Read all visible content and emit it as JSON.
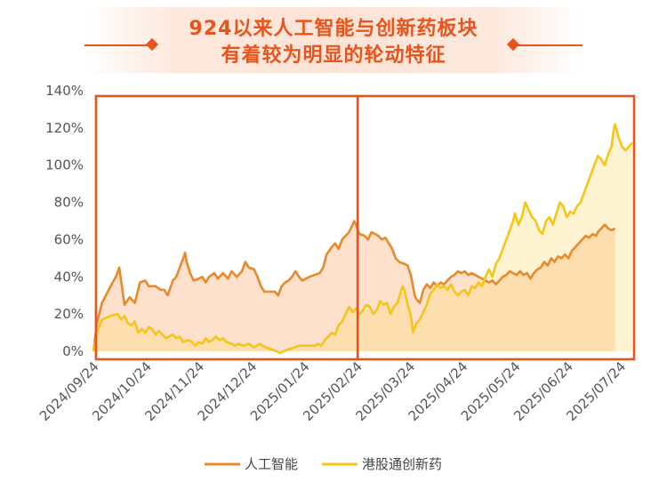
{
  "title": {
    "line1": "924以来人工智能与创新药板块",
    "line2": "有着较为明显的轮动特征"
  },
  "chart_data": {
    "type": "area",
    "y_ticks": [
      "0%",
      "20%",
      "40%",
      "60%",
      "80%",
      "100%",
      "120%",
      "140%"
    ],
    "ylim": [
      0,
      140
    ],
    "x_ticks": [
      "2024/09/24",
      "2024/10/24",
      "2024/11/24",
      "2024/12/24",
      "2025/01/24",
      "2025/02/24",
      "2025/03/24",
      "2025/04/24",
      "2025/05/24",
      "2025/06/24",
      "2025/07/24"
    ],
    "xlim": [
      0,
      313
    ],
    "series": [
      {
        "name": "人工智能",
        "color": "#e8892c",
        "points": [
          [
            0,
            0
          ],
          [
            2,
            15
          ],
          [
            5,
            26
          ],
          [
            10,
            35
          ],
          [
            13,
            40
          ],
          [
            15,
            45
          ],
          [
            18,
            25
          ],
          [
            21,
            29
          ],
          [
            24,
            26
          ],
          [
            27,
            37
          ],
          [
            30,
            38
          ],
          [
            32,
            35
          ],
          [
            36,
            35
          ],
          [
            39,
            33
          ],
          [
            41,
            33
          ],
          [
            43,
            30
          ],
          [
            46,
            38
          ],
          [
            48,
            40
          ],
          [
            50,
            45
          ],
          [
            52,
            50
          ],
          [
            53,
            53
          ],
          [
            54,
            48
          ],
          [
            56,
            42
          ],
          [
            58,
            38
          ],
          [
            61,
            39
          ],
          [
            63,
            40
          ],
          [
            65,
            37
          ],
          [
            67,
            40
          ],
          [
            70,
            42
          ],
          [
            72,
            39
          ],
          [
            75,
            42
          ],
          [
            78,
            39
          ],
          [
            80,
            43
          ],
          [
            83,
            40
          ],
          [
            86,
            43
          ],
          [
            88,
            48
          ],
          [
            90,
            45
          ],
          [
            93,
            44
          ],
          [
            95,
            40
          ],
          [
            97,
            35
          ],
          [
            99,
            32
          ],
          [
            102,
            32
          ],
          [
            105,
            32
          ],
          [
            107,
            30
          ],
          [
            109,
            35
          ],
          [
            111,
            37
          ],
          [
            113,
            38
          ],
          [
            115,
            40
          ],
          [
            117,
            43
          ],
          [
            119,
            40
          ],
          [
            121,
            38
          ],
          [
            123,
            39
          ],
          [
            125,
            40
          ],
          [
            128,
            41
          ],
          [
            131,
            42
          ],
          [
            133,
            45
          ],
          [
            135,
            52
          ],
          [
            138,
            56
          ],
          [
            140,
            58
          ],
          [
            142,
            55
          ],
          [
            144,
            60
          ],
          [
            146,
            62
          ],
          [
            148,
            64
          ],
          [
            150,
            68
          ],
          [
            151,
            70
          ],
          [
            152,
            68
          ],
          [
            154,
            63
          ],
          [
            157,
            62
          ],
          [
            159,
            60
          ],
          [
            161,
            64
          ],
          [
            163,
            63
          ],
          [
            165,
            62
          ],
          [
            167,
            60
          ],
          [
            169,
            61
          ],
          [
            171,
            58
          ],
          [
            173,
            55
          ],
          [
            175,
            50
          ],
          [
            177,
            48
          ],
          [
            180,
            47
          ],
          [
            182,
            46
          ],
          [
            184,
            40
          ],
          [
            185,
            35
          ],
          [
            186,
            30
          ],
          [
            187,
            28
          ],
          [
            189,
            26
          ],
          [
            191,
            33
          ],
          [
            193,
            36
          ],
          [
            195,
            34
          ],
          [
            197,
            37
          ],
          [
            199,
            35
          ],
          [
            201,
            37
          ],
          [
            203,
            36
          ],
          [
            205,
            38
          ],
          [
            207,
            40
          ],
          [
            209,
            41
          ],
          [
            211,
            43
          ],
          [
            213,
            42
          ],
          [
            215,
            43
          ],
          [
            217,
            41
          ],
          [
            219,
            42
          ],
          [
            221,
            41
          ],
          [
            223,
            40
          ],
          [
            225,
            39
          ],
          [
            227,
            38
          ],
          [
            229,
            37
          ],
          [
            231,
            38
          ],
          [
            233,
            36
          ],
          [
            235,
            38
          ],
          [
            237,
            40
          ],
          [
            239,
            41
          ],
          [
            241,
            43
          ],
          [
            243,
            42
          ],
          [
            245,
            41
          ],
          [
            247,
            43
          ],
          [
            249,
            41
          ],
          [
            251,
            42
          ],
          [
            253,
            39
          ],
          [
            255,
            42
          ],
          [
            257,
            44
          ],
          [
            259,
            45
          ],
          [
            261,
            48
          ],
          [
            263,
            46
          ],
          [
            265,
            50
          ],
          [
            267,
            48
          ],
          [
            269,
            51
          ],
          [
            271,
            50
          ],
          [
            273,
            52
          ],
          [
            275,
            50
          ],
          [
            277,
            54
          ],
          [
            279,
            56
          ],
          [
            281,
            58
          ],
          [
            283,
            60
          ],
          [
            285,
            62
          ],
          [
            287,
            61
          ],
          [
            289,
            63
          ],
          [
            291,
            62
          ],
          [
            292,
            64
          ],
          [
            294,
            66
          ],
          [
            296,
            68
          ],
          [
            298,
            66
          ],
          [
            300,
            65
          ],
          [
            302,
            66
          ]
        ]
      },
      {
        "name": "港股通创新药",
        "color": "#f5c518",
        "points": [
          [
            0,
            0
          ],
          [
            2,
            10
          ],
          [
            5,
            17
          ],
          [
            10,
            19
          ],
          [
            14,
            20
          ],
          [
            16,
            17
          ],
          [
            18,
            19
          ],
          [
            20,
            15
          ],
          [
            22,
            14
          ],
          [
            24,
            16
          ],
          [
            26,
            10
          ],
          [
            28,
            12
          ],
          [
            30,
            10
          ],
          [
            32,
            13
          ],
          [
            34,
            12
          ],
          [
            36,
            9
          ],
          [
            38,
            11
          ],
          [
            40,
            9
          ],
          [
            42,
            7
          ],
          [
            44,
            8
          ],
          [
            46,
            9
          ],
          [
            48,
            7
          ],
          [
            50,
            8
          ],
          [
            52,
            5
          ],
          [
            55,
            6
          ],
          [
            57,
            5
          ],
          [
            59,
            3
          ],
          [
            61,
            5
          ],
          [
            63,
            4
          ],
          [
            65,
            7
          ],
          [
            67,
            5
          ],
          [
            69,
            6
          ],
          [
            71,
            8
          ],
          [
            73,
            6
          ],
          [
            75,
            7
          ],
          [
            77,
            5
          ],
          [
            80,
            4
          ],
          [
            82,
            3
          ],
          [
            84,
            4
          ],
          [
            87,
            3
          ],
          [
            90,
            4
          ],
          [
            93,
            2
          ],
          [
            96,
            4
          ],
          [
            98,
            3
          ],
          [
            100,
            2
          ],
          [
            103,
            1
          ],
          [
            106,
            0
          ],
          [
            108,
            -1
          ],
          [
            110,
            0
          ],
          [
            113,
            1
          ],
          [
            116,
            2
          ],
          [
            119,
            3
          ],
          [
            122,
            3
          ],
          [
            125,
            3
          ],
          [
            128,
            3
          ],
          [
            130,
            4
          ],
          [
            132,
            3
          ],
          [
            134,
            6
          ],
          [
            136,
            8
          ],
          [
            138,
            10
          ],
          [
            140,
            9
          ],
          [
            142,
            14
          ],
          [
            144,
            16
          ],
          [
            146,
            20
          ],
          [
            148,
            24
          ],
          [
            150,
            21
          ],
          [
            152,
            23
          ],
          [
            154,
            20
          ],
          [
            156,
            22
          ],
          [
            158,
            25
          ],
          [
            160,
            24
          ],
          [
            162,
            20
          ],
          [
            164,
            22
          ],
          [
            166,
            27
          ],
          [
            168,
            25
          ],
          [
            170,
            26
          ],
          [
            172,
            20
          ],
          [
            174,
            24
          ],
          [
            176,
            26
          ],
          [
            178,
            32
          ],
          [
            179,
            35
          ],
          [
            180,
            33
          ],
          [
            182,
            25
          ],
          [
            184,
            18
          ],
          [
            185,
            10
          ],
          [
            187,
            15
          ],
          [
            189,
            17
          ],
          [
            191,
            21
          ],
          [
            193,
            25
          ],
          [
            195,
            31
          ],
          [
            197,
            33
          ],
          [
            199,
            36
          ],
          [
            201,
            34
          ],
          [
            203,
            35
          ],
          [
            205,
            33
          ],
          [
            207,
            36
          ],
          [
            209,
            32
          ],
          [
            211,
            30
          ],
          [
            213,
            32
          ],
          [
            215,
            33
          ],
          [
            217,
            30
          ],
          [
            219,
            35
          ],
          [
            221,
            34
          ],
          [
            223,
            37
          ],
          [
            225,
            35
          ],
          [
            227,
            40
          ],
          [
            229,
            44
          ],
          [
            231,
            40
          ],
          [
            233,
            47
          ],
          [
            235,
            50
          ],
          [
            237,
            55
          ],
          [
            239,
            60
          ],
          [
            241,
            65
          ],
          [
            243,
            70
          ],
          [
            244,
            74
          ],
          [
            246,
            68
          ],
          [
            248,
            72
          ],
          [
            250,
            80
          ],
          [
            252,
            76
          ],
          [
            254,
            72
          ],
          [
            256,
            70
          ],
          [
            258,
            65
          ],
          [
            260,
            63
          ],
          [
            262,
            70
          ],
          [
            264,
            72
          ],
          [
            266,
            68
          ],
          [
            268,
            74
          ],
          [
            270,
            80
          ],
          [
            272,
            78
          ],
          [
            274,
            72
          ],
          [
            276,
            75
          ],
          [
            278,
            74
          ],
          [
            280,
            78
          ],
          [
            282,
            80
          ],
          [
            284,
            85
          ],
          [
            286,
            90
          ],
          [
            288,
            95
          ],
          [
            290,
            100
          ],
          [
            292,
            105
          ],
          [
            294,
            103
          ],
          [
            296,
            100
          ],
          [
            298,
            106
          ],
          [
            300,
            110
          ],
          [
            301,
            118
          ],
          [
            302,
            122
          ],
          [
            304,
            115
          ],
          [
            306,
            110
          ],
          [
            308,
            108
          ],
          [
            310,
            110
          ],
          [
            312,
            112
          ]
        ]
      }
    ],
    "highlight_boxes": [
      {
        "x_from": 1.5,
        "x_to": 153
      },
      {
        "x_from": 153,
        "x_to": 313
      }
    ],
    "legend_position": "bottom",
    "grid": false
  }
}
